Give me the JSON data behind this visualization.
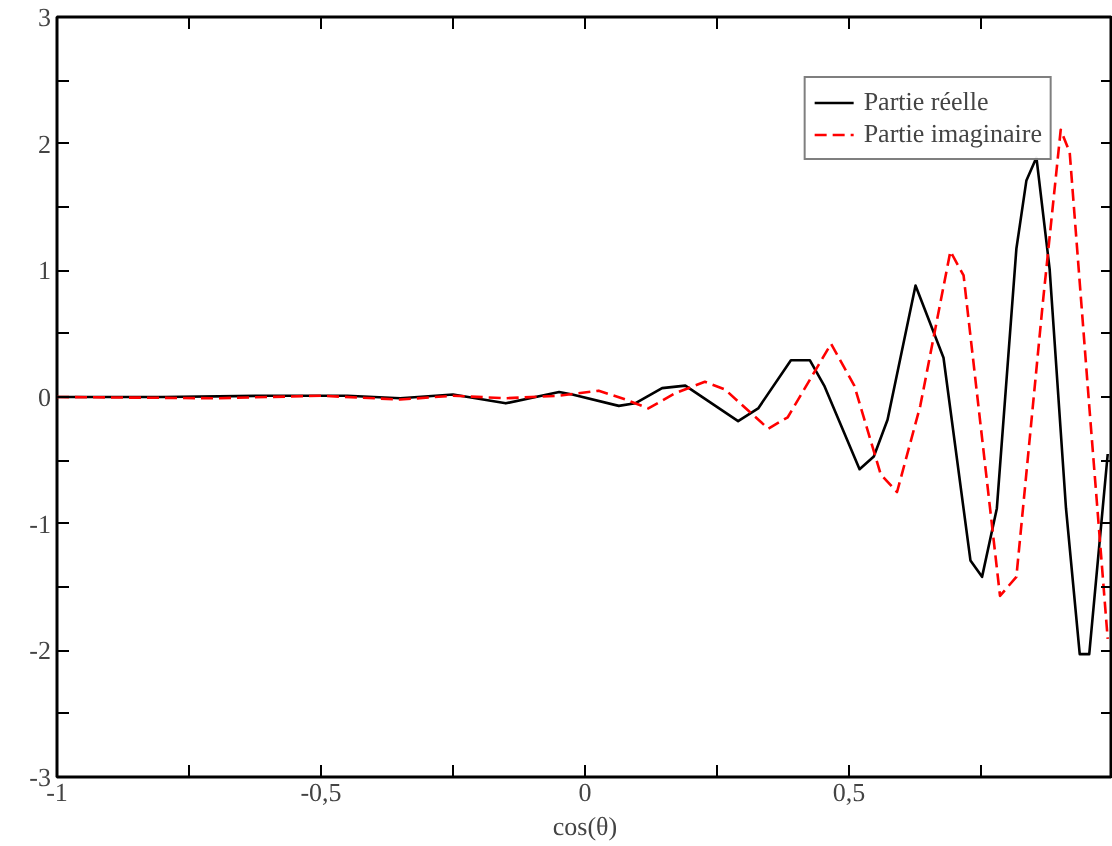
{
  "chart_data": {
    "type": "line",
    "xlabel": "cos(θ)",
    "xlim": [
      -1,
      1
    ],
    "ylim": [
      -3,
      3
    ],
    "xticks": [
      {
        "value": -1,
        "label": "-1"
      },
      {
        "value": -0.75,
        "label": null
      },
      {
        "value": -0.5,
        "label": "-0,5"
      },
      {
        "value": -0.25,
        "label": null
      },
      {
        "value": 0,
        "label": "0"
      },
      {
        "value": 0.25,
        "label": null
      },
      {
        "value": 0.5,
        "label": "0,5"
      },
      {
        "value": 0.75,
        "label": null
      },
      {
        "value": 1,
        "label": null
      }
    ],
    "yticks": [
      -3,
      {
        "value": -2.5,
        "label": null
      },
      -2,
      {
        "value": -1.5,
        "label": null
      },
      -1,
      {
        "value": -0.5,
        "label": null
      },
      0,
      {
        "value": 0.5,
        "label": null
      },
      1,
      {
        "value": 1.5,
        "label": null
      },
      2,
      {
        "value": 2.5,
        "label": null
      },
      3
    ],
    "grid": false,
    "legend": "top right",
    "series": [
      {
        "name": "Partie réelle",
        "color": "#000000",
        "line_style": "solid",
        "x": [
          -1,
          -0.8,
          -0.6,
          -0.45,
          -0.35,
          -0.25,
          -0.15,
          -0.049,
          -0.024,
          0.064,
          0.095,
          0.146,
          0.19,
          0.29,
          0.328,
          0.39,
          0.426,
          0.453,
          0.52,
          0.547,
          0.573,
          0.626,
          0.679,
          0.73,
          0.752,
          0.78,
          0.817,
          0.836,
          0.855,
          0.88,
          0.911,
          0.937,
          0.955,
          0.99
        ],
        "values": [
          0,
          0,
          0.01,
          0.01,
          -0.01,
          0.02,
          -0.05,
          0.04,
          0.02,
          -0.07,
          -0.05,
          0.07,
          0.09,
          -0.19,
          -0.09,
          0.29,
          0.29,
          0.09,
          -0.57,
          -0.47,
          -0.18,
          0.88,
          0.31,
          -1.29,
          -1.42,
          -0.88,
          1.17,
          1.71,
          1.89,
          1.01,
          -0.88,
          -2.03,
          -2.03,
          -0.45
        ]
      },
      {
        "name": "Partie imaginaire",
        "color": "#ff0000",
        "line_style": "dashed",
        "x": [
          -1,
          -0.7,
          -0.5,
          -0.35,
          -0.25,
          -0.15,
          -0.049,
          0.026,
          0.077,
          0.12,
          0.171,
          0.227,
          0.265,
          0.347,
          0.384,
          0.466,
          0.51,
          0.56,
          0.591,
          0.635,
          0.692,
          0.717,
          0.786,
          0.817,
          0.867,
          0.901,
          0.918,
          0.955,
          0.99
        ],
        "values": [
          0,
          -0.01,
          0.01,
          -0.02,
          0.01,
          -0.01,
          0.01,
          0.05,
          -0.02,
          -0.09,
          0.03,
          0.12,
          0.06,
          -0.25,
          -0.16,
          0.42,
          0.09,
          -0.61,
          -0.75,
          -0.07,
          1.15,
          0.96,
          -1.57,
          -1.42,
          0.74,
          2.11,
          1.93,
          -0.07,
          -1.91
        ]
      }
    ]
  }
}
